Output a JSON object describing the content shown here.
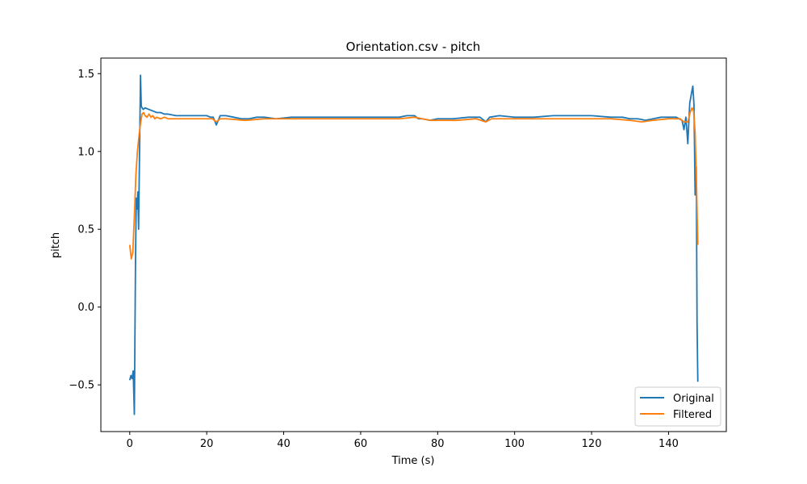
{
  "chart_data": {
    "type": "line",
    "title": "Orientation.csv - pitch",
    "xlabel": "Time (s)",
    "ylabel": "pitch",
    "xlim": [
      -7.5,
      155
    ],
    "ylim": [
      -0.8,
      1.6
    ],
    "xticks": [
      0,
      20,
      40,
      60,
      80,
      100,
      120,
      140
    ],
    "xtick_labels": [
      "0",
      "20",
      "40",
      "60",
      "80",
      "100",
      "120",
      "140"
    ],
    "yticks": [
      -0.5,
      0.0,
      0.5,
      1.0,
      1.5
    ],
    "ytick_labels": [
      "−0.5",
      "0.0",
      "0.5",
      "1.0",
      "1.5"
    ],
    "grid": false,
    "legend": "lower-right",
    "series": [
      {
        "name": "Original",
        "color": "#1f77b4",
        "points": [
          [
            0.0,
            -0.47
          ],
          [
            0.3,
            -0.44
          ],
          [
            0.6,
            -0.46
          ],
          [
            0.9,
            -0.41
          ],
          [
            1.2,
            -0.69
          ],
          [
            1.5,
            0.3
          ],
          [
            1.7,
            0.7
          ],
          [
            1.9,
            0.63
          ],
          [
            2.1,
            0.74
          ],
          [
            2.3,
            0.5
          ],
          [
            2.5,
            0.9
          ],
          [
            2.8,
            1.49
          ],
          [
            3.0,
            1.29
          ],
          [
            3.5,
            1.27
          ],
          [
            4.0,
            1.28
          ],
          [
            5,
            1.27
          ],
          [
            6,
            1.26
          ],
          [
            7,
            1.25
          ],
          [
            8,
            1.25
          ],
          [
            9,
            1.24
          ],
          [
            10,
            1.24
          ],
          [
            12,
            1.23
          ],
          [
            14,
            1.23
          ],
          [
            16,
            1.23
          ],
          [
            18,
            1.23
          ],
          [
            20,
            1.23
          ],
          [
            21,
            1.22
          ],
          [
            21.7,
            1.22
          ],
          [
            22.5,
            1.17
          ],
          [
            23.5,
            1.23
          ],
          [
            25,
            1.23
          ],
          [
            27,
            1.22
          ],
          [
            29,
            1.21
          ],
          [
            31,
            1.21
          ],
          [
            33,
            1.22
          ],
          [
            35,
            1.22
          ],
          [
            38,
            1.21
          ],
          [
            42,
            1.22
          ],
          [
            46,
            1.22
          ],
          [
            50,
            1.22
          ],
          [
            55,
            1.22
          ],
          [
            60,
            1.22
          ],
          [
            64,
            1.22
          ],
          [
            68,
            1.22
          ],
          [
            70,
            1.22
          ],
          [
            72,
            1.23
          ],
          [
            74,
            1.23
          ],
          [
            75,
            1.21
          ],
          [
            76,
            1.21
          ],
          [
            78,
            1.2
          ],
          [
            80,
            1.21
          ],
          [
            84,
            1.21
          ],
          [
            88,
            1.22
          ],
          [
            91,
            1.22
          ],
          [
            92.5,
            1.19
          ],
          [
            93.5,
            1.22
          ],
          [
            96,
            1.23
          ],
          [
            100,
            1.22
          ],
          [
            105,
            1.22
          ],
          [
            110,
            1.23
          ],
          [
            115,
            1.23
          ],
          [
            120,
            1.23
          ],
          [
            125,
            1.22
          ],
          [
            128,
            1.22
          ],
          [
            130,
            1.21
          ],
          [
            132,
            1.21
          ],
          [
            134,
            1.2
          ],
          [
            136,
            1.21
          ],
          [
            138,
            1.22
          ],
          [
            140,
            1.22
          ],
          [
            142,
            1.22
          ],
          [
            143.5,
            1.2
          ],
          [
            144,
            1.14
          ],
          [
            144.5,
            1.22
          ],
          [
            145,
            1.05
          ],
          [
            145.5,
            1.31
          ],
          [
            146,
            1.38
          ],
          [
            146.3,
            1.42
          ],
          [
            146.6,
            1.3
          ],
          [
            146.9,
            0.72
          ],
          [
            147.2,
            0.9
          ],
          [
            147.4,
            -0.1
          ],
          [
            147.6,
            -0.48
          ]
        ]
      },
      {
        "name": "Filtered",
        "color": "#ff7f0e",
        "points": [
          [
            0.0,
            0.4
          ],
          [
            0.4,
            0.31
          ],
          [
            0.8,
            0.35
          ],
          [
            1.2,
            0.58
          ],
          [
            1.6,
            0.85
          ],
          [
            2.0,
            1.0
          ],
          [
            2.4,
            1.1
          ],
          [
            2.8,
            1.18
          ],
          [
            3.2,
            1.24
          ],
          [
            3.6,
            1.25
          ],
          [
            4.0,
            1.23
          ],
          [
            4.5,
            1.22
          ],
          [
            5.0,
            1.24
          ],
          [
            5.5,
            1.22
          ],
          [
            6.0,
            1.23
          ],
          [
            6.5,
            1.21
          ],
          [
            7.0,
            1.22
          ],
          [
            8,
            1.21
          ],
          [
            9,
            1.22
          ],
          [
            10,
            1.21
          ],
          [
            12,
            1.21
          ],
          [
            14,
            1.21
          ],
          [
            16,
            1.21
          ],
          [
            18,
            1.21
          ],
          [
            20,
            1.21
          ],
          [
            21.5,
            1.21
          ],
          [
            22.5,
            1.19
          ],
          [
            23.5,
            1.21
          ],
          [
            25,
            1.21
          ],
          [
            30,
            1.2
          ],
          [
            35,
            1.21
          ],
          [
            40,
            1.21
          ],
          [
            45,
            1.21
          ],
          [
            50,
            1.21
          ],
          [
            55,
            1.21
          ],
          [
            60,
            1.21
          ],
          [
            65,
            1.21
          ],
          [
            70,
            1.21
          ],
          [
            74,
            1.22
          ],
          [
            76,
            1.21
          ],
          [
            78,
            1.2
          ],
          [
            80,
            1.2
          ],
          [
            85,
            1.2
          ],
          [
            90,
            1.21
          ],
          [
            92.5,
            1.19
          ],
          [
            94,
            1.21
          ],
          [
            100,
            1.21
          ],
          [
            105,
            1.21
          ],
          [
            110,
            1.21
          ],
          [
            115,
            1.21
          ],
          [
            120,
            1.21
          ],
          [
            125,
            1.21
          ],
          [
            130,
            1.2
          ],
          [
            133,
            1.19
          ],
          [
            136,
            1.2
          ],
          [
            140,
            1.21
          ],
          [
            143,
            1.21
          ],
          [
            144,
            1.19
          ],
          [
            145,
            1.19
          ],
          [
            145.6,
            1.25
          ],
          [
            146.1,
            1.28
          ],
          [
            146.5,
            1.26
          ],
          [
            146.9,
            1.12
          ],
          [
            147.3,
            0.75
          ],
          [
            147.6,
            0.4
          ]
        ]
      }
    ]
  }
}
